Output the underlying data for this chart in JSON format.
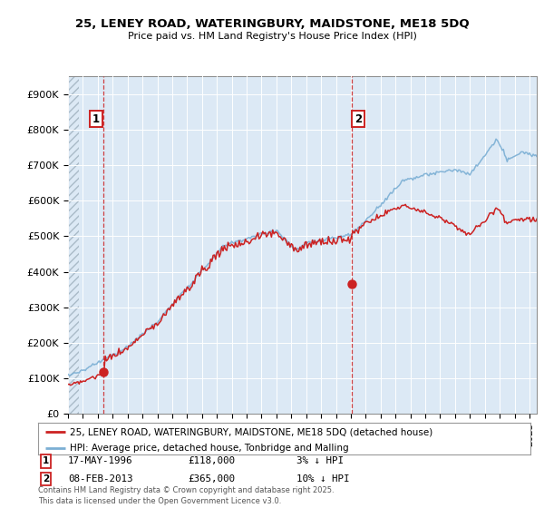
{
  "title1": "25, LENEY ROAD, WATERINGBURY, MAIDSTONE, ME18 5DQ",
  "title2": "Price paid vs. HM Land Registry's House Price Index (HPI)",
  "ylim": [
    0,
    950000
  ],
  "yticks": [
    0,
    100000,
    200000,
    300000,
    400000,
    500000,
    600000,
    700000,
    800000,
    900000
  ],
  "ytick_labels": [
    "£0",
    "£100K",
    "£200K",
    "£300K",
    "£400K",
    "£500K",
    "£600K",
    "£700K",
    "£800K",
    "£900K"
  ],
  "hpi_color": "#7bafd4",
  "price_color": "#cc2222",
  "sale1_year": 1996.375,
  "sale1_price": 118000,
  "sale2_year": 2013.083,
  "sale2_price": 365000,
  "vline_color": "#cc2222",
  "plot_bg_color": "#dce9f5",
  "grid_color": "#ffffff",
  "legend_label_price": "25, LENEY ROAD, WATERINGBURY, MAIDSTONE, ME18 5DQ (detached house)",
  "legend_label_hpi": "HPI: Average price, detached house, Tonbridge and Malling",
  "annotation1_date": "17-MAY-1996",
  "annotation1_price": "£118,000",
  "annotation1_hpi": "3% ↓ HPI",
  "annotation2_date": "08-FEB-2013",
  "annotation2_price": "£365,000",
  "annotation2_hpi": "10% ↓ HPI",
  "footer": "Contains HM Land Registry data © Crown copyright and database right 2025.\nThis data is licensed under the Open Government Licence v3.0.",
  "bg_color": "#ffffff"
}
